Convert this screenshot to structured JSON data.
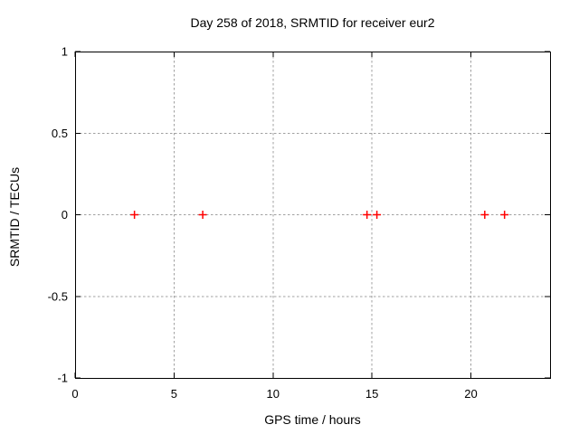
{
  "chart_data": {
    "type": "scatter",
    "title": "Day 258 of 2018, SRMTID for receiver eur2",
    "xlabel": "GPS time / hours",
    "ylabel": "SRMTID / TECUs",
    "xlim": [
      0,
      24
    ],
    "ylim": [
      -1,
      1
    ],
    "grid": true,
    "legend": "none",
    "xticks": [
      {
        "v": 0,
        "label": "0"
      },
      {
        "v": 5,
        "label": "5"
      },
      {
        "v": 10,
        "label": "10"
      },
      {
        "v": 15,
        "label": "15"
      },
      {
        "v": 20,
        "label": "20"
      }
    ],
    "yticks": [
      {
        "v": -1,
        "label": "-1"
      },
      {
        "v": -0.5,
        "label": "-0.5"
      },
      {
        "v": 0,
        "label": "0"
      },
      {
        "v": 0.5,
        "label": "0.5"
      },
      {
        "v": 1,
        "label": "1"
      }
    ],
    "series": [
      {
        "marker": "plus",
        "color": "#ff0000",
        "points": [
          {
            "x": 3.0,
            "y": 0
          },
          {
            "x": 6.45,
            "y": 0
          },
          {
            "x": 14.75,
            "y": 0
          },
          {
            "x": 15.25,
            "y": 0
          },
          {
            "x": 20.7,
            "y": 0
          },
          {
            "x": 21.7,
            "y": 0
          }
        ]
      }
    ],
    "colors": {
      "background": "#ffffff",
      "border": "#000000",
      "grid": "#a0a0a0",
      "text": "#000000"
    }
  }
}
